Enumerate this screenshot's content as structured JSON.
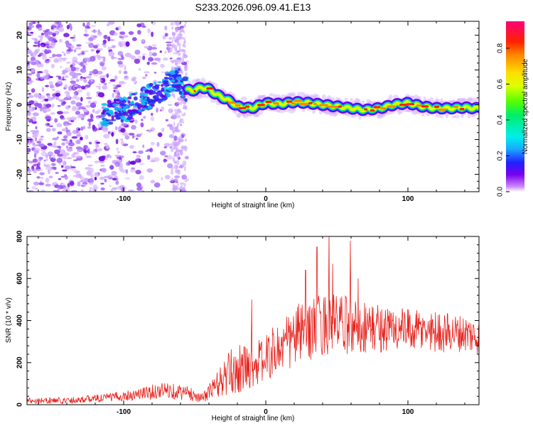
{
  "chart_data": [
    {
      "type": "heatmap",
      "title": "S233.2026.096.09.41.E13",
      "xlabel": "Height of straight line (km)",
      "ylabel": "Frequency (Hz)",
      "xlim": [
        -168,
        150
      ],
      "ylim": [
        -25,
        24
      ],
      "xticks": [
        -100,
        0,
        100
      ],
      "yticks": [
        20,
        10,
        0,
        -10,
        -20
      ],
      "ridge": {
        "x": [
          -110,
          -100,
          -90,
          -80,
          -70,
          -62,
          -57,
          -52,
          -45,
          -40,
          -35,
          -30,
          -25,
          -20,
          -10,
          0,
          10,
          20,
          30,
          40,
          50,
          60,
          70,
          80,
          90,
          100,
          110,
          120,
          130,
          140,
          148
        ],
        "y": [
          -2.5,
          -1.5,
          0.5,
          2.5,
          5.5,
          7.5,
          4.5,
          4.0,
          5.0,
          4.5,
          3.0,
          2.0,
          1.0,
          -0.5,
          -1.0,
          0.5,
          0.2,
          0.8,
          0.5,
          0.0,
          -0.5,
          -1.0,
          -1.5,
          -1.0,
          0.0,
          0.5,
          -0.5,
          -1.0,
          -1.0,
          -0.8,
          -1.0
        ]
      },
      "colorbar": {
        "label": "Normalized spectral amplitude",
        "ticks": [
          "0.0",
          "0.2",
          "0.4",
          "0.6",
          "0.8"
        ],
        "range": [
          0,
          0.95
        ]
      }
    },
    {
      "type": "line",
      "xlabel": "Height of straight line (km)",
      "ylabel": "SNR (10 * v/v)",
      "xlim": [
        -168,
        150
      ],
      "ylim": [
        0,
        800
      ],
      "xticks": [
        -100,
        0,
        100
      ],
      "yticks": [
        0,
        200,
        400,
        600,
        800
      ],
      "series": [
        {
          "name": "SNR",
          "color": "#e8221c",
          "x": [
            -168,
            -140,
            -110,
            -90,
            -70,
            -55,
            -50,
            -45,
            -40,
            -35,
            -30,
            -25,
            -20,
            -15,
            -10,
            -5,
            0,
            5,
            10,
            15,
            20,
            25,
            30,
            35,
            40,
            45,
            50,
            55,
            60,
            65,
            70,
            75,
            80,
            85,
            90,
            95,
            100,
            105,
            110,
            115,
            120,
            125,
            130,
            135,
            140,
            145,
            150
          ],
          "base": [
            20,
            20,
            35,
            50,
            70,
            55,
            45,
            30,
            60,
            90,
            120,
            150,
            170,
            175,
            190,
            200,
            220,
            250,
            270,
            290,
            320,
            350,
            360,
            370,
            380,
            390,
            385,
            380,
            375,
            370,
            370,
            365,
            365,
            360,
            360,
            355,
            355,
            350,
            350,
            350,
            350,
            345,
            345,
            340,
            340,
            330,
            320
          ],
          "amp": [
            15,
            15,
            20,
            30,
            40,
            35,
            30,
            20,
            40,
            60,
            90,
            110,
            120,
            110,
            110,
            110,
            110,
            120,
            130,
            140,
            150,
            150,
            150,
            150,
            150,
            150,
            140,
            140,
            140,
            130,
            130,
            120,
            120,
            110,
            110,
            110,
            100,
            100,
            100,
            100,
            100,
            100,
            90,
            90,
            90,
            90,
            80
          ],
          "peaks": [
            [
              44.5,
              830
            ],
            [
              59.5,
              780
            ],
            [
              36,
              750
            ],
            [
              28,
              640
            ],
            [
              47,
              670
            ],
            [
              65,
              600
            ],
            [
              -10,
              500
            ]
          ]
        }
      ]
    }
  ]
}
